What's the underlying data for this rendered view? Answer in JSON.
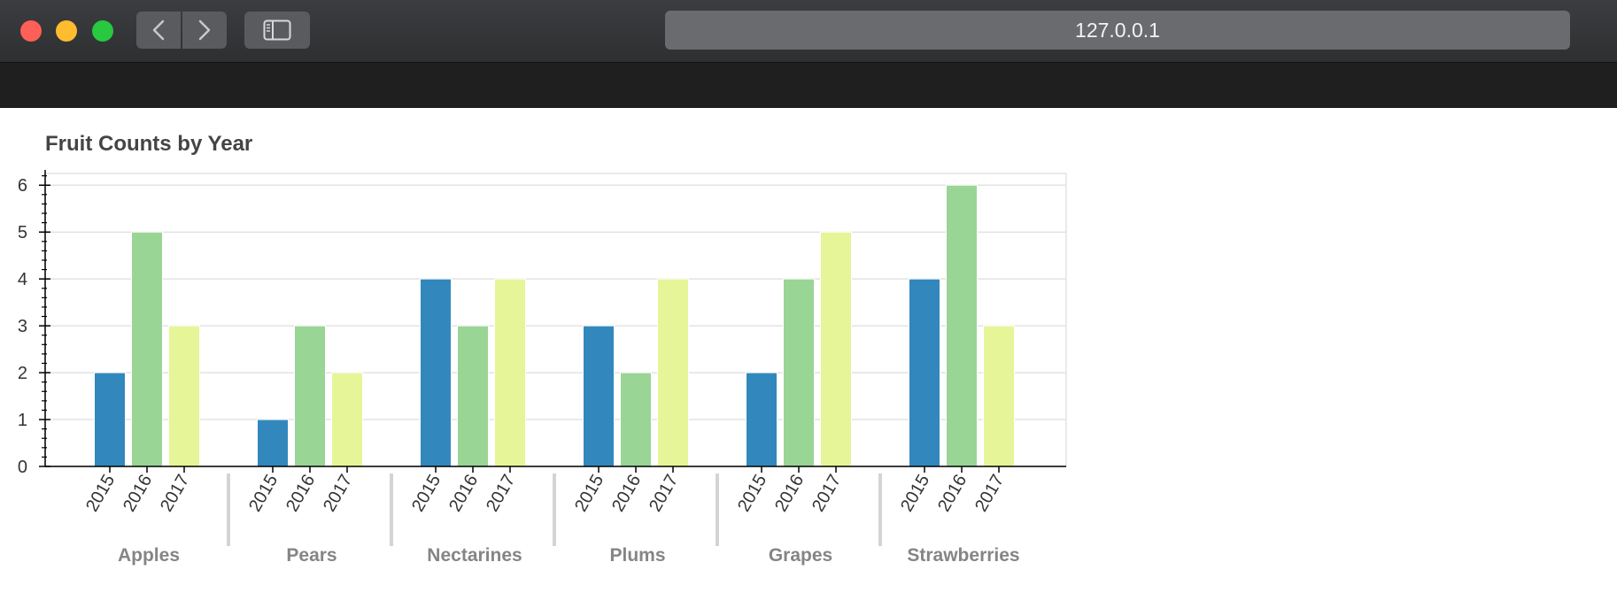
{
  "browser": {
    "url": "127.0.0.1"
  },
  "chart_data": {
    "type": "bar",
    "title": "Fruit Counts by Year",
    "categories": [
      "Apples",
      "Pears",
      "Nectarines",
      "Plums",
      "Grapes",
      "Strawberries"
    ],
    "subcategories": [
      "2015",
      "2016",
      "2017"
    ],
    "series": [
      {
        "name": "2015",
        "values": [
          2,
          1,
          4,
          3,
          2,
          4
        ],
        "color": "#3288bd"
      },
      {
        "name": "2016",
        "values": [
          5,
          3,
          3,
          2,
          4,
          6
        ],
        "color": "#99d594"
      },
      {
        "name": "2017",
        "values": [
          3,
          2,
          4,
          4,
          5,
          3
        ],
        "color": "#e6f598"
      }
    ],
    "xlabel": "",
    "ylabel": "",
    "ylim": [
      0,
      6.25
    ],
    "yticks": [
      0,
      1,
      2,
      3,
      4,
      5,
      6
    ],
    "grid": true,
    "legend": "none"
  }
}
